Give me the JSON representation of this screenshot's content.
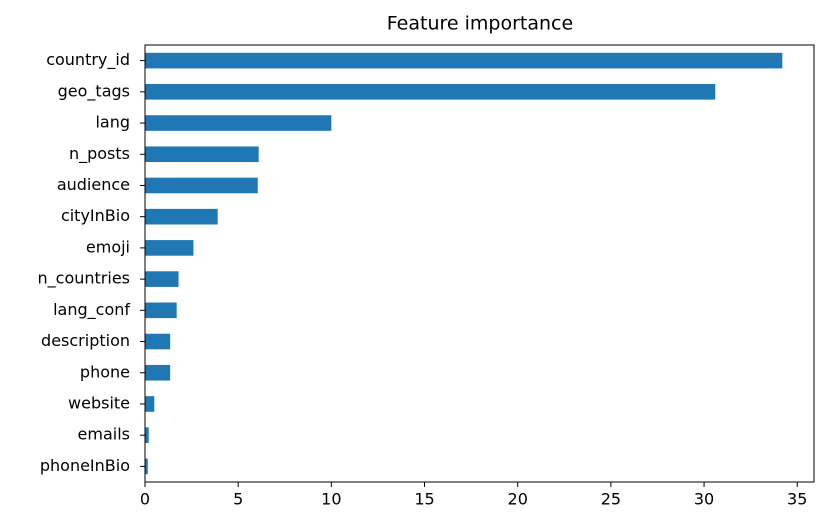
{
  "chart_data": {
    "type": "barh",
    "title": "Feature importance",
    "categories": [
      "country_id",
      "geo_tags",
      "lang",
      "n_posts",
      "audience",
      "cityInBio",
      "emoji",
      "n_countries",
      "lang_conf",
      "description",
      "phone",
      "website",
      "emails",
      "phoneInBio"
    ],
    "values": [
      34.2,
      30.6,
      10.0,
      6.1,
      6.05,
      3.9,
      2.6,
      1.8,
      1.7,
      1.35,
      1.35,
      0.5,
      0.2,
      0.15
    ],
    "color": "#1f77b4",
    "xlim": [
      0,
      35.9
    ],
    "xticks": [
      0,
      5,
      10,
      15,
      20,
      25,
      30,
      35
    ]
  }
}
